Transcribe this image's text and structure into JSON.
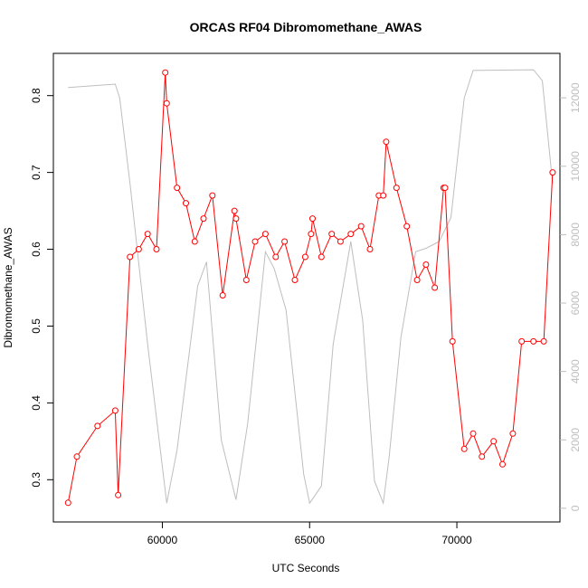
{
  "chart_data": {
    "type": "line",
    "title": "ORCAS RF04 Dibromomethane_AWAS",
    "xlabel": "UTC Seconds",
    "ylabel": "Dibromomethane_AWAS",
    "xlim": [
      56300,
      73500
    ],
    "ylim": [
      0.245,
      0.855
    ],
    "y2lim": [
      -400,
      13300
    ],
    "grid": false,
    "x_ticks": [
      60000,
      65000,
      70000
    ],
    "y_ticks": [
      0.3,
      0.4,
      0.5,
      0.6,
      0.7,
      0.8
    ],
    "y2_ticks": [
      0,
      2000,
      4000,
      6000,
      8000,
      10000,
      12000
    ],
    "series": [
      {
        "color": "#ff0000",
        "axis": "left",
        "style": "line+points",
        "x": [
          56800,
          57100,
          57800,
          58400,
          58500,
          58900,
          59200,
          59500,
          59800,
          60100,
          60150,
          60500,
          60800,
          61100,
          61400,
          61700,
          62050,
          62450,
          62500,
          62850,
          63150,
          63500,
          63850,
          64150,
          64500,
          64850,
          65050,
          65100,
          65400,
          65750,
          66050,
          66400,
          66750,
          67050,
          67350,
          67500,
          67600,
          67950,
          68300,
          68650,
          68950,
          69250,
          69550,
          69600,
          69850,
          70250,
          70550,
          70850,
          71250,
          71550,
          71900,
          72200,
          72600,
          72950,
          73250
        ],
        "y": [
          0.27,
          0.33,
          0.37,
          0.39,
          0.28,
          0.59,
          0.6,
          0.62,
          0.6,
          0.83,
          0.79,
          0.68,
          0.66,
          0.61,
          0.64,
          0.67,
          0.54,
          0.65,
          0.64,
          0.56,
          0.61,
          0.62,
          0.59,
          0.61,
          0.56,
          0.59,
          0.62,
          0.64,
          0.59,
          0.62,
          0.61,
          0.62,
          0.63,
          0.6,
          0.67,
          0.67,
          0.74,
          0.68,
          0.63,
          0.56,
          0.58,
          0.55,
          0.68,
          0.68,
          0.48,
          0.34,
          0.36,
          0.33,
          0.35,
          0.32,
          0.36,
          0.48,
          0.48,
          0.48,
          0.7
        ]
      },
      {
        "color": "#bebebe",
        "axis": "right",
        "style": "line",
        "x": [
          56800,
          58400,
          58550,
          58900,
          59500,
          60150,
          60500,
          61200,
          61500,
          62000,
          62500,
          62900,
          63500,
          63800,
          64200,
          64800,
          65000,
          65400,
          65800,
          66400,
          66800,
          67200,
          67500,
          67700,
          68100,
          68600,
          68950,
          69400,
          69800,
          70250,
          70550,
          72600,
          72900,
          73250
        ],
        "y": [
          12300,
          12400,
          12000,
          9500,
          4800,
          150,
          1700,
          6500,
          7200,
          2000,
          250,
          2500,
          7500,
          7000,
          5800,
          1000,
          150,
          650,
          4800,
          7800,
          5500,
          800,
          150,
          1500,
          5000,
          7500,
          7600,
          7800,
          8500,
          12000,
          12800,
          12820,
          12500,
          9500
        ]
      }
    ]
  }
}
